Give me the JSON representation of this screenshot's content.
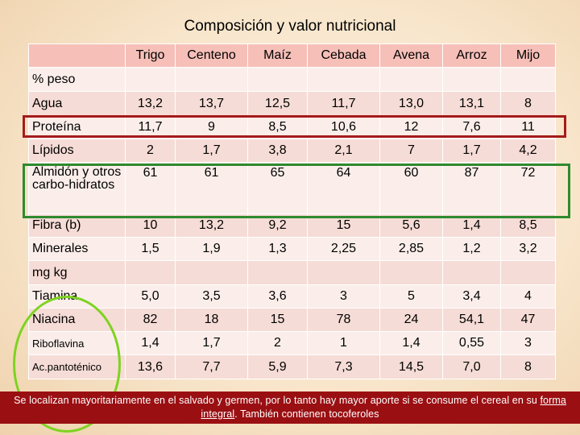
{
  "title": "Composición y valor nutricional",
  "columns": [
    "Trigo",
    "Centeno",
    "Maíz",
    "Cebada",
    "Avena",
    "Arroz",
    "Mijo"
  ],
  "section_peso": "% peso",
  "section_mg": "mg kg",
  "rows": [
    {
      "label": "Agua",
      "values": [
        "13,2",
        "13,7",
        "12,5",
        "11,7",
        "13,0",
        "13,1",
        "8"
      ]
    },
    {
      "label": "Proteína",
      "values": [
        "11,7",
        "9",
        "8,5",
        "10,6",
        "12",
        "7,6",
        "11"
      ]
    },
    {
      "label": "Lípidos",
      "values": [
        "2",
        "1,7",
        "3,8",
        "2,1",
        "7",
        "1,7",
        "4,2"
      ]
    },
    {
      "label": "Almidón y otros carbo-hidratos",
      "values": [
        "61",
        "61",
        "65",
        "64",
        "60",
        "87",
        "72"
      ]
    },
    {
      "label": "Fibra (b)",
      "values": [
        "10",
        "13,2",
        "9,2",
        "15",
        "5,6",
        "1,4",
        "8,5"
      ]
    },
    {
      "label": "Minerales",
      "values": [
        "1,5",
        "1,9",
        "1,3",
        "2,25",
        "2,85",
        "1,2",
        "3,2"
      ]
    },
    {
      "label": "Tiamina",
      "values": [
        "5,0",
        "3,5",
        "3,6",
        "3",
        "5",
        "3,4",
        "4"
      ]
    },
    {
      "label": "Niacina",
      "values": [
        "82",
        "18",
        "15",
        "78",
        "24",
        "54,1",
        "47"
      ]
    },
    {
      "label": "Riboflavina",
      "values": [
        "1,4",
        "1,7",
        "2",
        "1",
        "1,4",
        "0,55",
        "3"
      ]
    },
    {
      "label": "Ac.pantoténico",
      "values": [
        "13,6",
        "7,7",
        "5,9",
        "7,3",
        "14,5",
        "7,0",
        "8"
      ]
    }
  ],
  "footer": {
    "text_before": "Se localizan mayoritariamente en el salvado y germen, por lo tanto hay mayor aporte si se consume el cereal en su ",
    "underlined": "forma integral",
    "text_after": ". También contienen tocoferoles"
  },
  "colors": {
    "header_bg": "#f6bfb8",
    "row_dark": "#f6dcd6",
    "row_light": "#fbeeea",
    "footer_bg": "#9a0f12",
    "highlight_red": "#a51b1b",
    "highlight_green": "#2f8a2f",
    "highlight_circle": "#7ed321"
  }
}
